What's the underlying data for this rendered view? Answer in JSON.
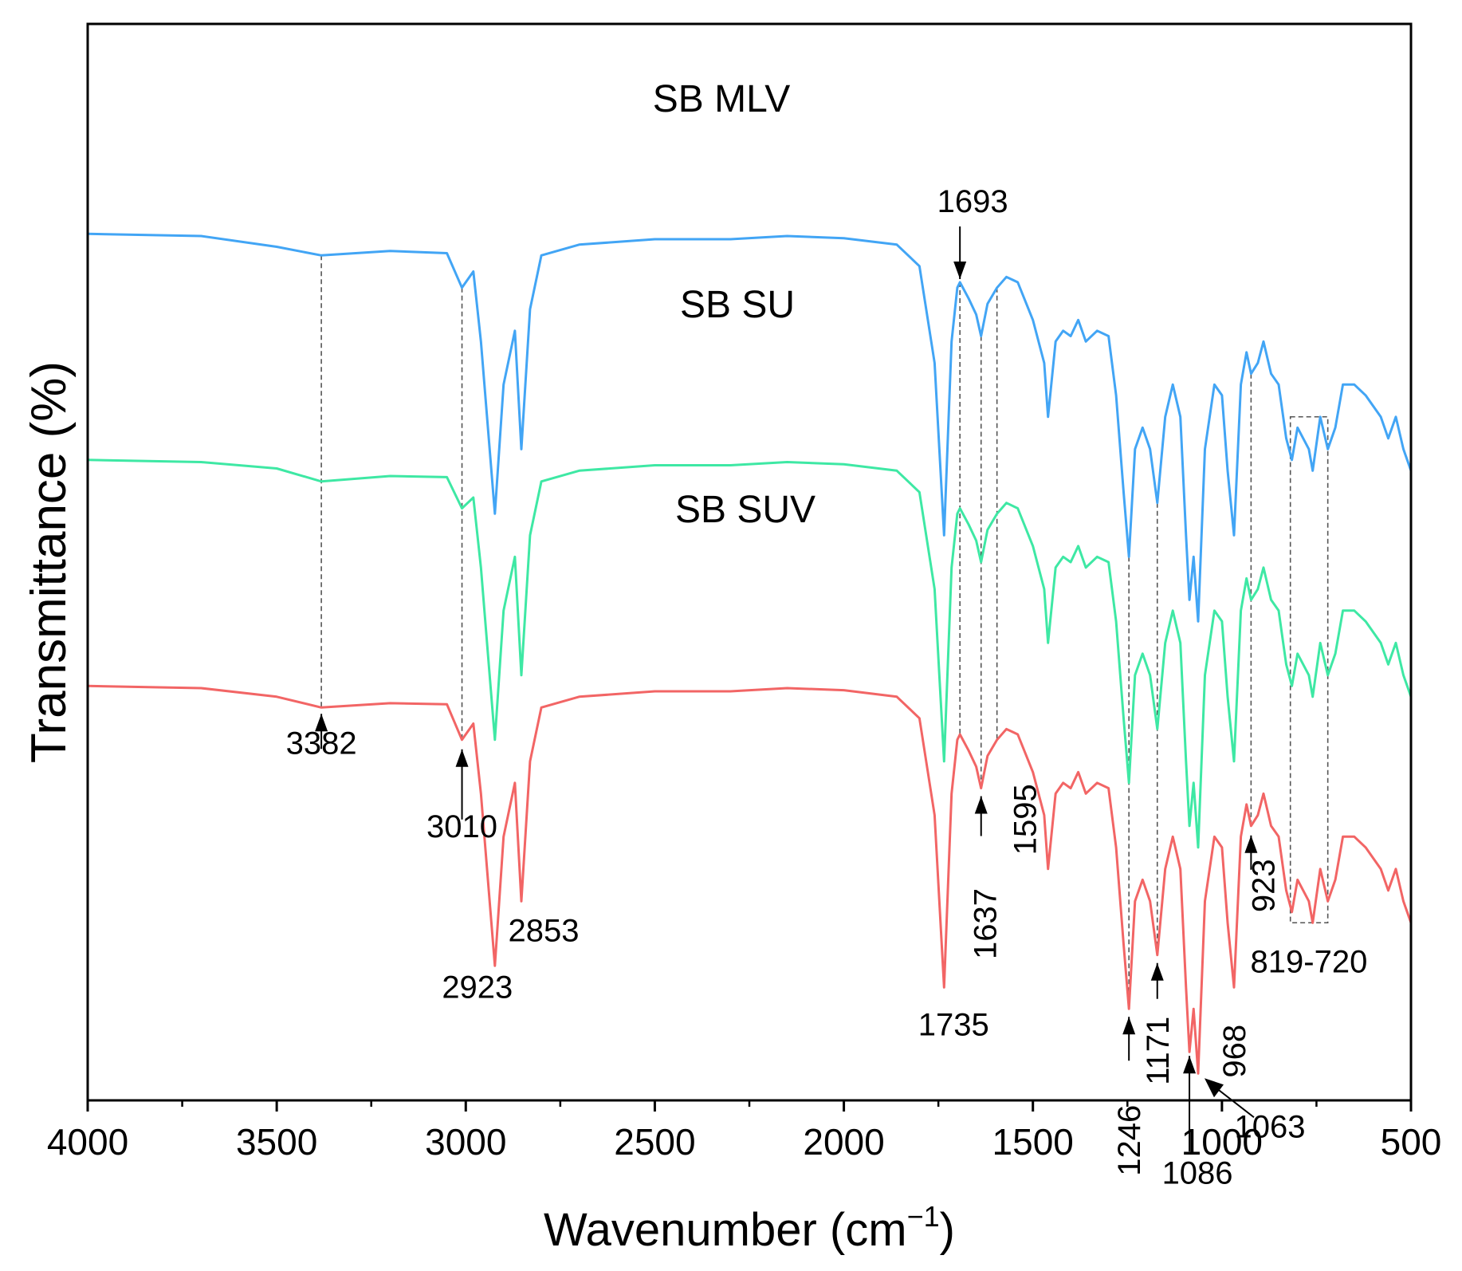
{
  "chart_data": {
    "type": "line",
    "xlabel": "Wavenumber (cm",
    "xlabel_sup": "−1",
    "xlabel_close": ")",
    "ylabel": "Transmittance (%)",
    "xlim": [
      4000,
      500
    ],
    "ylim": [
      0,
      100
    ],
    "x_ticks": [
      4000,
      3500,
      3000,
      2500,
      2000,
      1500,
      1000,
      500
    ],
    "x_tick_labels": [
      "4000",
      "3500",
      "3000",
      "2500",
      "2000",
      "1500",
      "1000",
      "500"
    ],
    "baseline_x": [
      4000,
      3700,
      3500,
      3382,
      3200,
      3050,
      3010,
      2980,
      2960,
      2923,
      2900,
      2870,
      2853,
      2830,
      2800,
      2700,
      2500,
      2300,
      2150,
      2000,
      1860,
      1800,
      1760,
      1735,
      1715,
      1700,
      1693,
      1670,
      1650,
      1637,
      1620,
      1595,
      1570,
      1540,
      1500,
      1470,
      1460,
      1440,
      1420,
      1400,
      1380,
      1360,
      1330,
      1300,
      1280,
      1260,
      1246,
      1230,
      1210,
      1190,
      1171,
      1150,
      1130,
      1110,
      1095,
      1086,
      1075,
      1063,
      1045,
      1020,
      1000,
      985,
      968,
      950,
      935,
      923,
      905,
      890,
      870,
      850,
      830,
      815,
      800,
      785,
      770,
      760,
      740,
      720,
      700,
      680,
      650,
      620,
      600,
      580,
      560,
      540,
      520,
      500
    ],
    "series": [
      {
        "name": "SB MLV",
        "label": "SB MLV",
        "color": "#42a5f5",
        "offset": 80.5,
        "y": [
          0,
          0.2,
          1.2,
          2.0,
          1.6,
          1.8,
          5.0,
          3.5,
          10,
          26,
          14,
          9,
          20,
          7,
          2,
          1,
          0.5,
          0.5,
          0.2,
          0.4,
          1.0,
          3.0,
          12,
          28,
          10,
          5.0,
          4.5,
          6.0,
          7.5,
          9.5,
          6.5,
          5.0,
          4.0,
          4.5,
          8.0,
          12,
          17,
          10,
          9.0,
          9.5,
          8.0,
          10,
          9.0,
          9.5,
          15,
          24,
          30,
          20,
          18,
          20,
          25,
          17,
          14,
          17,
          28,
          34,
          30,
          36,
          20,
          14,
          15,
          22,
          28,
          14,
          11,
          13,
          12,
          10,
          13,
          14,
          19,
          21,
          18,
          19,
          20,
          22,
          17,
          20,
          18,
          14,
          14,
          15,
          16,
          17,
          19,
          17,
          20,
          22
        ]
      },
      {
        "name": "SB SU",
        "label": "SB SU",
        "color": "#3ee8a4",
        "offset": 59.5,
        "y": [
          0,
          0.2,
          0.8,
          2.0,
          1.5,
          1.6,
          4.5,
          3.5,
          10,
          26,
          14,
          9,
          20,
          7,
          2,
          1,
          0.5,
          0.5,
          0.2,
          0.4,
          1.0,
          3.0,
          12,
          28,
          10,
          5.0,
          4.5,
          6.0,
          7.5,
          9.5,
          6.5,
          5.0,
          4.0,
          4.5,
          8.0,
          12,
          17,
          10,
          9.0,
          9.5,
          8.0,
          10,
          9.0,
          9.5,
          15,
          24,
          30,
          20,
          18,
          20,
          25,
          17,
          14,
          17,
          28,
          34,
          30,
          36,
          20,
          14,
          15,
          22,
          28,
          14,
          11,
          13,
          12,
          10,
          13,
          14,
          19,
          21,
          18,
          19,
          20,
          22,
          17,
          20,
          18,
          14,
          14,
          15,
          16,
          17,
          19,
          17,
          20,
          22
        ]
      },
      {
        "name": "SB SUV",
        "label": "SB SUV",
        "color": "#f26565",
        "offset": 38.5,
        "y": [
          0,
          0.2,
          1.0,
          2.0,
          1.6,
          1.7,
          5.0,
          3.5,
          10,
          26,
          14,
          9,
          20,
          7,
          2,
          1,
          0.5,
          0.5,
          0.2,
          0.4,
          1.0,
          3.0,
          12,
          28,
          10,
          5.0,
          4.5,
          6.0,
          7.5,
          9.5,
          6.5,
          5.0,
          4.0,
          4.5,
          8.0,
          12,
          17,
          10,
          9.0,
          9.5,
          8.0,
          10,
          9.0,
          9.5,
          15,
          24,
          30,
          20,
          18,
          20,
          25,
          17,
          14,
          17,
          28,
          34,
          30,
          36,
          20,
          14,
          15,
          22,
          28,
          14,
          11,
          13,
          12,
          10,
          13,
          14,
          19,
          21,
          18,
          19,
          20,
          22,
          17,
          20,
          18,
          14,
          14,
          15,
          16,
          17,
          19,
          17,
          20,
          22
        ]
      }
    ],
    "guide_lines": [
      3382,
      3010,
      1693,
      1637,
      1595,
      1246,
      1171,
      923
    ],
    "box_range": [
      819,
      720
    ],
    "annotations": [
      {
        "text": "3382",
        "wn": 3382,
        "arrow": "up"
      },
      {
        "text": "3010",
        "wn": 3010,
        "arrow": "up"
      },
      {
        "text": "2923",
        "wn": 2923,
        "arrow": "none"
      },
      {
        "text": "2853",
        "wn": 2853,
        "arrow": "none"
      },
      {
        "text": "1735",
        "wn": 1735,
        "arrow": "none"
      },
      {
        "text": "1693",
        "wn": 1693,
        "arrow": "down"
      },
      {
        "text": "1637",
        "wn": 1637,
        "arrow": "up",
        "rotate": true
      },
      {
        "text": "1595",
        "wn": 1595,
        "arrow": "none",
        "rotate": true
      },
      {
        "text": "1246",
        "wn": 1246,
        "arrow": "up",
        "rotate": true
      },
      {
        "text": "1171",
        "wn": 1171,
        "arrow": "up",
        "rotate": true
      },
      {
        "text": "1086",
        "wn": 1086,
        "arrow": "up"
      },
      {
        "text": "1063",
        "wn": 1063,
        "arrow": "diag"
      },
      {
        "text": "968",
        "wn": 968,
        "arrow": "none",
        "rotate": true
      },
      {
        "text": "923",
        "wn": 923,
        "arrow": "up",
        "rotate": true
      },
      {
        "text": "819-720",
        "wn": 770,
        "arrow": "none"
      }
    ]
  }
}
